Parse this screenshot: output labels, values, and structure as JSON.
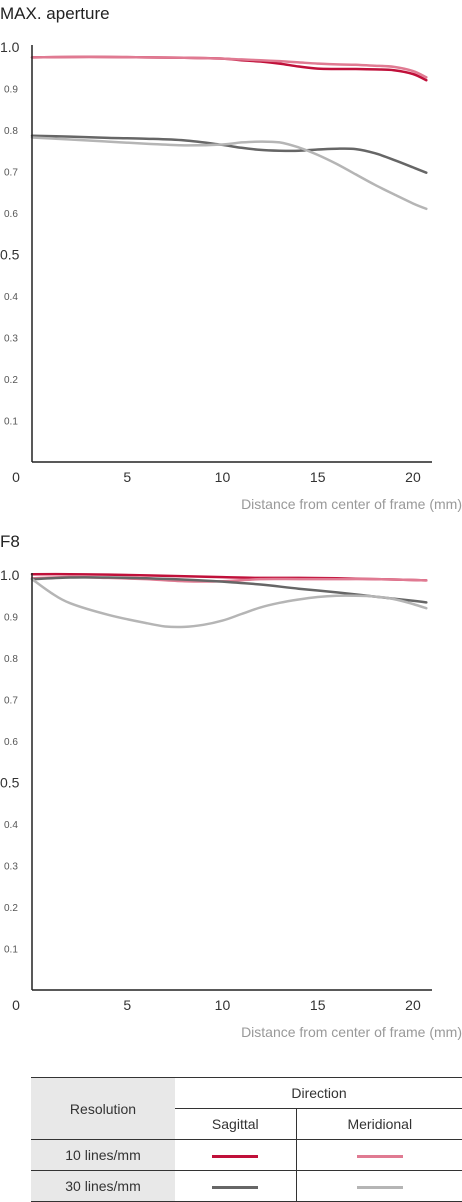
{
  "chart_data": [
    {
      "type": "line",
      "title": "MAX. aperture",
      "xlabel": "Distance from center of frame (mm)",
      "xlim": [
        0,
        21
      ],
      "ylim": [
        0,
        1.0
      ],
      "xticks": [
        "0",
        "5",
        "10",
        "15",
        "20"
      ],
      "yticks": [
        "0.1",
        "0.2",
        "0.3",
        "0.4",
        "0.5",
        "0.6",
        "0.7",
        "0.8",
        "0.9",
        "1.0"
      ],
      "series": [
        {
          "name": "10 lines/mm Sagittal",
          "color": "#c0103a",
          "x": [
            0,
            2,
            4,
            6,
            8,
            10,
            11,
            12,
            13,
            14,
            15,
            16,
            17,
            18,
            19,
            20,
            20.7
          ],
          "y": [
            0.975,
            0.976,
            0.976,
            0.975,
            0.974,
            0.972,
            0.968,
            0.965,
            0.96,
            0.953,
            0.948,
            0.947,
            0.947,
            0.946,
            0.944,
            0.935,
            0.92
          ]
        },
        {
          "name": "10 lines/mm Meridional",
          "color": "#e07a92",
          "x": [
            0,
            2,
            4,
            6,
            8,
            10,
            11,
            12,
            13,
            14,
            15,
            16,
            17,
            18,
            19,
            20,
            20.7
          ],
          "y": [
            0.975,
            0.976,
            0.976,
            0.975,
            0.974,
            0.972,
            0.97,
            0.968,
            0.966,
            0.963,
            0.96,
            0.958,
            0.957,
            0.955,
            0.952,
            0.942,
            0.927
          ]
        },
        {
          "name": "30 lines/mm Sagittal",
          "color": "#666666",
          "x": [
            0,
            2,
            4,
            6,
            8,
            10,
            11,
            12,
            13,
            14,
            15,
            16,
            17,
            18,
            19,
            20,
            20.7
          ],
          "y": [
            0.786,
            0.784,
            0.781,
            0.779,
            0.775,
            0.764,
            0.757,
            0.752,
            0.75,
            0.75,
            0.753,
            0.755,
            0.754,
            0.744,
            0.728,
            0.71,
            0.697
          ]
        },
        {
          "name": "30 lines/mm Meridional",
          "color": "#b5b5b5",
          "x": [
            0,
            2,
            4,
            6,
            8,
            10,
            11,
            12,
            13,
            14,
            15,
            16,
            17,
            18,
            19,
            20,
            20.7
          ],
          "y": [
            0.782,
            0.777,
            0.772,
            0.767,
            0.763,
            0.765,
            0.77,
            0.772,
            0.77,
            0.758,
            0.74,
            0.718,
            0.693,
            0.668,
            0.645,
            0.623,
            0.61
          ]
        }
      ]
    },
    {
      "type": "line",
      "title": "F8",
      "xlabel": "Distance from center of frame (mm)",
      "xlim": [
        0,
        21
      ],
      "ylim": [
        0,
        1.0
      ],
      "xticks": [
        "0",
        "5",
        "10",
        "15",
        "20"
      ],
      "yticks": [
        "0.1",
        "0.2",
        "0.3",
        "0.4",
        "0.5",
        "0.6",
        "0.7",
        "0.8",
        "0.9",
        "1.0"
      ],
      "series": [
        {
          "name": "10 lines/mm Sagittal",
          "color": "#c0103a",
          "x": [
            0,
            2,
            4,
            6,
            8,
            10,
            12,
            14,
            16,
            18,
            20,
            20.7
          ],
          "y": [
            1.002,
            1.002,
            1.001,
            0.999,
            0.997,
            0.995,
            0.993,
            0.993,
            0.992,
            0.99,
            0.988,
            0.987
          ]
        },
        {
          "name": "10 lines/mm Meridional",
          "color": "#e07a92",
          "x": [
            0,
            2,
            4,
            6,
            8,
            10,
            12,
            14,
            16,
            18,
            20,
            20.7
          ],
          "y": [
            0.992,
            0.995,
            0.993,
            0.99,
            0.985,
            0.985,
            0.99,
            0.99,
            0.99,
            0.99,
            0.988,
            0.987
          ]
        },
        {
          "name": "30 lines/mm Sagittal",
          "color": "#666666",
          "x": [
            0,
            2,
            4,
            6,
            8,
            10,
            12,
            14,
            16,
            18,
            20,
            20.7
          ],
          "y": [
            0.99,
            0.994,
            0.994,
            0.992,
            0.989,
            0.984,
            0.977,
            0.967,
            0.958,
            0.948,
            0.938,
            0.934
          ]
        },
        {
          "name": "30 lines/mm Meridional",
          "color": "#b5b5b5",
          "x": [
            0,
            1,
            2,
            4,
            6,
            7,
            8,
            9,
            10,
            11,
            12,
            13,
            14,
            15,
            16,
            17,
            18,
            19,
            20,
            20.7
          ],
          "y": [
            0.99,
            0.957,
            0.932,
            0.904,
            0.884,
            0.876,
            0.875,
            0.88,
            0.89,
            0.906,
            0.922,
            0.933,
            0.941,
            0.947,
            0.95,
            0.95,
            0.948,
            0.942,
            0.93,
            0.92
          ]
        }
      ]
    }
  ],
  "legend": {
    "resolution_header": "Resolution",
    "direction_header": "Direction",
    "sagittal": "Sagittal",
    "meridional": "Meridional",
    "rows": [
      {
        "label": "10 lines/mm",
        "sagittal_color": "#c0103a",
        "meridional_color": "#e07a92"
      },
      {
        "label": "30 lines/mm",
        "sagittal_color": "#666666",
        "meridional_color": "#b5b5b5"
      }
    ]
  }
}
